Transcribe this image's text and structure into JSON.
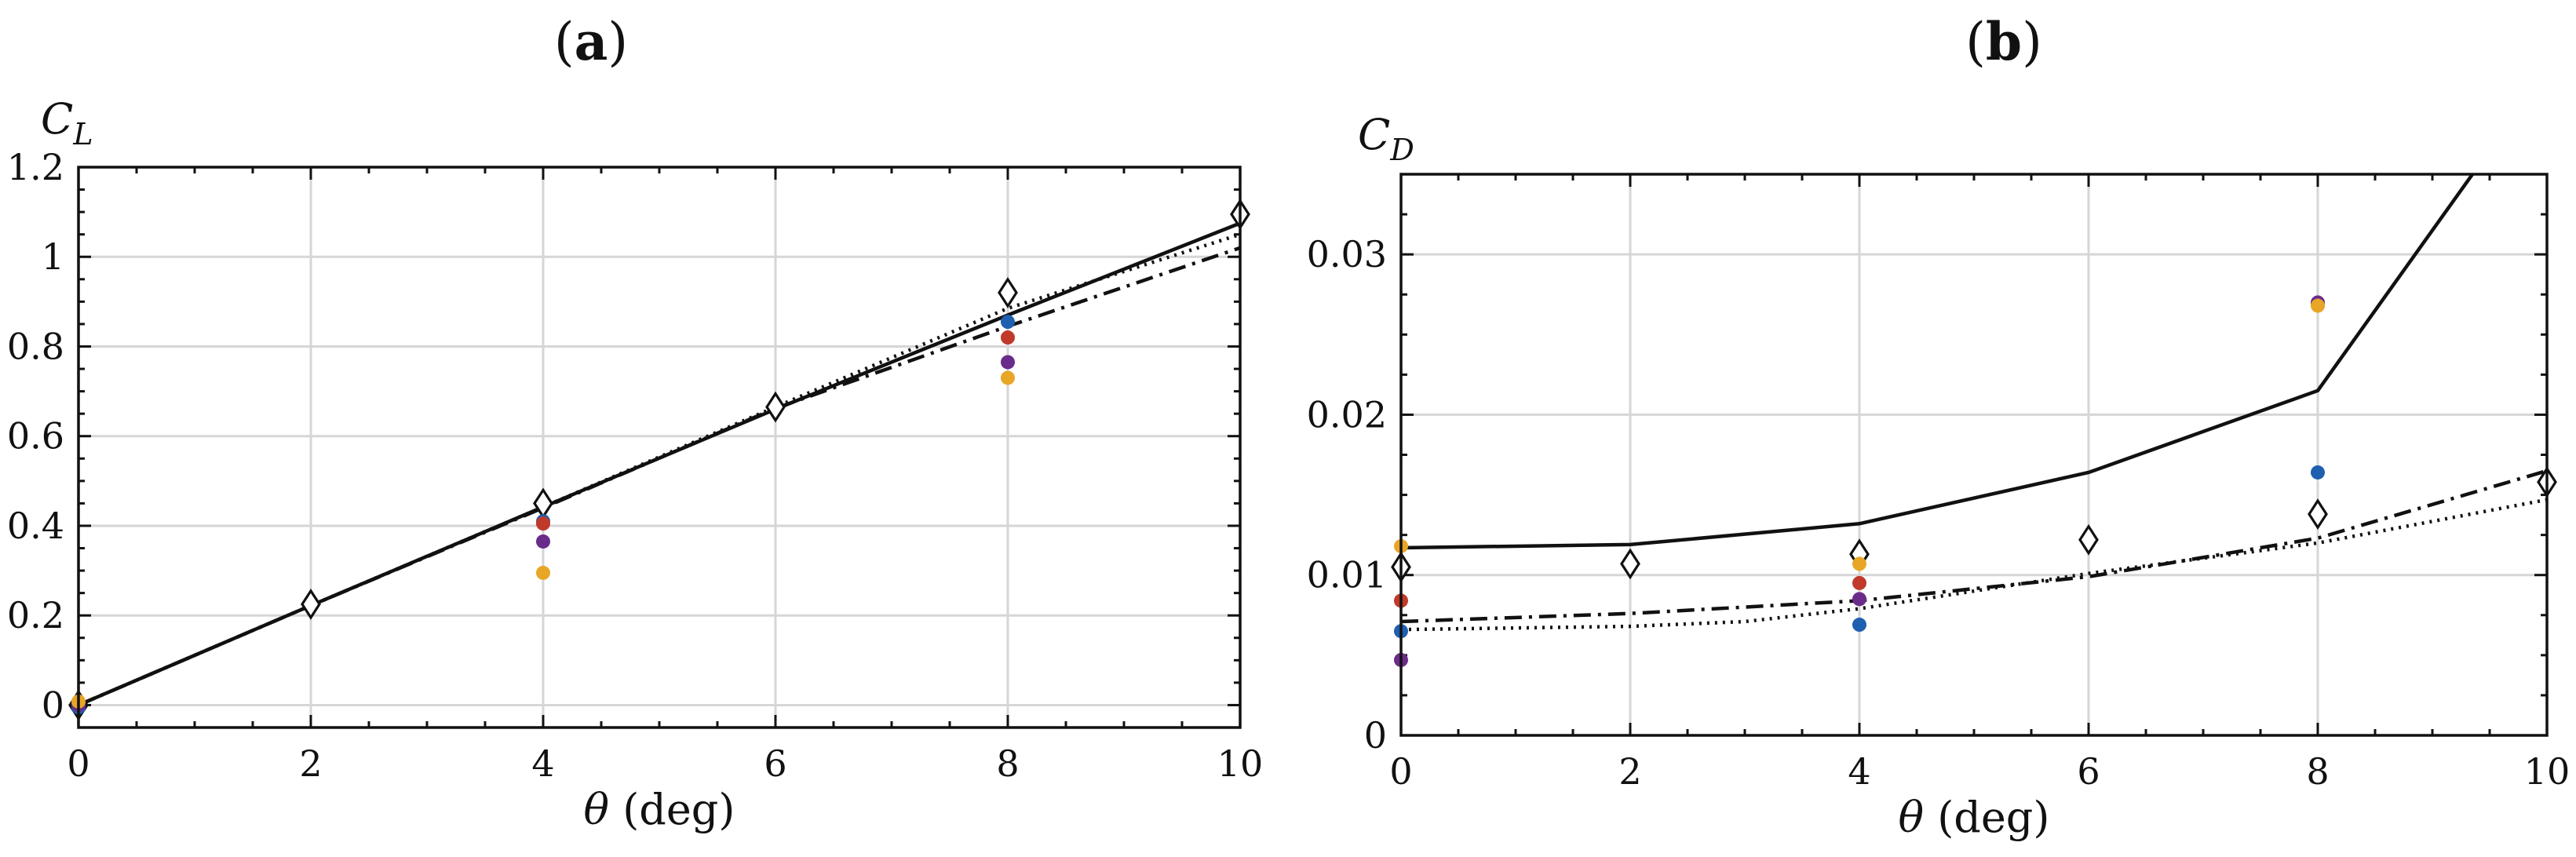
{
  "chart_data": [
    {
      "type": "line",
      "panel_label": "a",
      "ylabel": "C",
      "ylabel_sub": "L",
      "xlabel_symbol": "θ",
      "xlabel_unit": "(deg)",
      "xlim": [
        0,
        10
      ],
      "ylim": [
        -0.05,
        1.2
      ],
      "xticks": [
        0,
        2,
        4,
        6,
        8,
        10
      ],
      "xtick_labels": [
        "0",
        "2",
        "4",
        "6",
        "8",
        "10"
      ],
      "yticks": [
        0,
        0.2,
        0.4,
        0.6,
        0.8,
        1.0,
        1.2
      ],
      "ytick_labels": [
        "0",
        "0.2",
        "0.4",
        "0.6",
        "0.8",
        "1",
        "1.2"
      ],
      "grid": true,
      "lines": [
        {
          "name": "solid",
          "style": "solid",
          "x": [
            0,
            2,
            4,
            6,
            8,
            10
          ],
          "y": [
            0,
            0.222,
            0.442,
            0.66,
            0.87,
            1.075
          ]
        },
        {
          "name": "dash-dot",
          "style": "dashdot",
          "x": [
            0,
            2,
            4,
            6,
            8,
            10
          ],
          "y": [
            0,
            0.222,
            0.44,
            0.662,
            0.845,
            1.02
          ]
        },
        {
          "name": "dotted",
          "style": "dotted",
          "x": [
            0,
            2,
            4,
            6,
            8,
            10
          ],
          "y": [
            0,
            0.222,
            0.442,
            0.665,
            0.885,
            1.05
          ]
        }
      ],
      "markers": [
        {
          "name": "diamond-series",
          "shape": "diamond",
          "color": "#ffffff",
          "x": [
            0,
            2,
            4,
            6,
            8,
            10
          ],
          "y": [
            0,
            0.225,
            0.45,
            0.665,
            0.92,
            1.095
          ]
        },
        {
          "name": "blue-series",
          "shape": "circle",
          "color": "#1f5fb0",
          "x": [
            0,
            4,
            8
          ],
          "y": [
            -0.005,
            0.41,
            0.855
          ]
        },
        {
          "name": "red-series",
          "shape": "circle",
          "color": "#c0392b",
          "x": [
            0,
            4,
            8
          ],
          "y": [
            0.005,
            0.405,
            0.82
          ]
        },
        {
          "name": "purple-series",
          "shape": "circle",
          "color": "#6a2c8a",
          "x": [
            0,
            4,
            8
          ],
          "y": [
            0.0,
            0.365,
            0.765
          ]
        },
        {
          "name": "orange-series",
          "shape": "circle",
          "color": "#e8a626",
          "x": [
            0,
            4,
            8
          ],
          "y": [
            0.008,
            0.295,
            0.73
          ]
        }
      ]
    },
    {
      "type": "line",
      "panel_label": "b",
      "ylabel": "C",
      "ylabel_sub": "D",
      "xlabel_symbol": "θ",
      "xlabel_unit": "(deg)",
      "xlim": [
        0,
        10
      ],
      "ylim": [
        0,
        0.035
      ],
      "xticks": [
        0,
        2,
        4,
        6,
        8,
        10
      ],
      "xtick_labels": [
        "0",
        "2",
        "4",
        "6",
        "8",
        "10"
      ],
      "yticks": [
        0,
        0.01,
        0.02,
        0.03
      ],
      "ytick_labels": [
        "0",
        "0.01",
        "0.02",
        "0.03"
      ],
      "grid": true,
      "lines": [
        {
          "name": "solid",
          "style": "solid",
          "x": [
            0,
            2,
            4,
            6,
            8,
            9.4
          ],
          "y": [
            0.0117,
            0.0119,
            0.0132,
            0.0164,
            0.0215,
            0.0355
          ]
        },
        {
          "name": "dash-dot",
          "style": "dashdot",
          "x": [
            0,
            2,
            4,
            6,
            8,
            10
          ],
          "y": [
            0.0071,
            0.0076,
            0.0084,
            0.0099,
            0.0123,
            0.0165
          ]
        },
        {
          "name": "dotted",
          "style": "dotted",
          "x": [
            0,
            2,
            3,
            4,
            6,
            8,
            10
          ],
          "y": [
            0.0066,
            0.0068,
            0.0071,
            0.0079,
            0.0101,
            0.012,
            0.0147
          ]
        }
      ],
      "markers": [
        {
          "name": "diamond-series",
          "shape": "diamond",
          "color": "#ffffff",
          "x": [
            0,
            2,
            4,
            6,
            8,
            10
          ],
          "y": [
            0.0105,
            0.0107,
            0.0113,
            0.0122,
            0.0138,
            0.0158
          ]
        },
        {
          "name": "blue-series",
          "shape": "circle",
          "color": "#1f5fb0",
          "x": [
            0,
            4,
            8
          ],
          "y": [
            0.0065,
            0.0069,
            0.0164
          ]
        },
        {
          "name": "red-series",
          "shape": "circle",
          "color": "#c0392b",
          "x": [
            0,
            4,
            8
          ],
          "y": [
            0.0084,
            0.0095,
            0.0269
          ]
        },
        {
          "name": "purple-series",
          "shape": "circle",
          "color": "#6a2c8a",
          "x": [
            0,
            4,
            8
          ],
          "y": [
            0.0047,
            0.0085,
            0.027
          ]
        },
        {
          "name": "orange-series",
          "shape": "circle",
          "color": "#e8a626",
          "x": [
            0,
            4,
            8
          ],
          "y": [
            0.0118,
            0.0107,
            0.0268
          ]
        }
      ]
    }
  ]
}
